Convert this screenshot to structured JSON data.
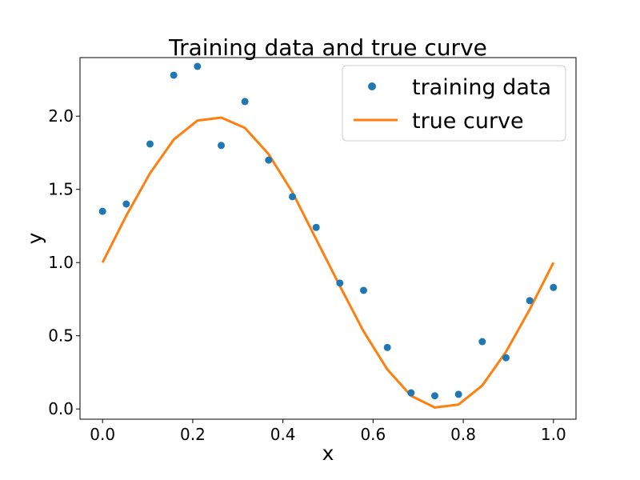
{
  "chart_data": {
    "type": "line",
    "title": "Training data and true curve",
    "xlabel": "x",
    "ylabel": "y",
    "xlim": [
      -0.05,
      1.05
    ],
    "ylim": [
      -0.07,
      2.4
    ],
    "xticks": [
      "0.0",
      "0.2",
      "0.4",
      "0.6",
      "0.8",
      "1.0"
    ],
    "yticks": [
      "0.0",
      "0.5",
      "1.0",
      "1.5",
      "2.0"
    ],
    "grid": false,
    "legend_position": "top-right",
    "series": [
      {
        "name": "training data",
        "kind": "scatter",
        "color": "#1f77b4",
        "x": [
          0.0,
          0.0526,
          0.1053,
          0.1579,
          0.2105,
          0.2632,
          0.3158,
          0.3684,
          0.4211,
          0.4737,
          0.5263,
          0.5789,
          0.6316,
          0.6842,
          0.7368,
          0.7895,
          0.8421,
          0.8947,
          0.9474,
          1.0
        ],
        "y": [
          1.35,
          1.4,
          1.81,
          2.28,
          2.34,
          1.8,
          2.1,
          1.7,
          1.45,
          1.24,
          0.86,
          0.81,
          0.42,
          0.11,
          0.09,
          0.1,
          0.46,
          0.35,
          0.74,
          0.83
        ]
      },
      {
        "name": "true curve",
        "kind": "line",
        "color": "#ff7f0e",
        "x": [
          0.0,
          0.0526,
          0.1053,
          0.1579,
          0.2105,
          0.2632,
          0.3158,
          0.3684,
          0.4211,
          0.4737,
          0.5263,
          0.5789,
          0.6316,
          0.6842,
          0.7368,
          0.7895,
          0.8421,
          0.8947,
          0.9474,
          1.0
        ],
        "y": [
          1.0,
          1.32,
          1.61,
          1.84,
          1.97,
          1.99,
          1.92,
          1.74,
          1.48,
          1.16,
          0.84,
          0.53,
          0.27,
          0.09,
          0.01,
          0.03,
          0.16,
          0.39,
          0.68,
          1.0
        ]
      }
    ]
  }
}
